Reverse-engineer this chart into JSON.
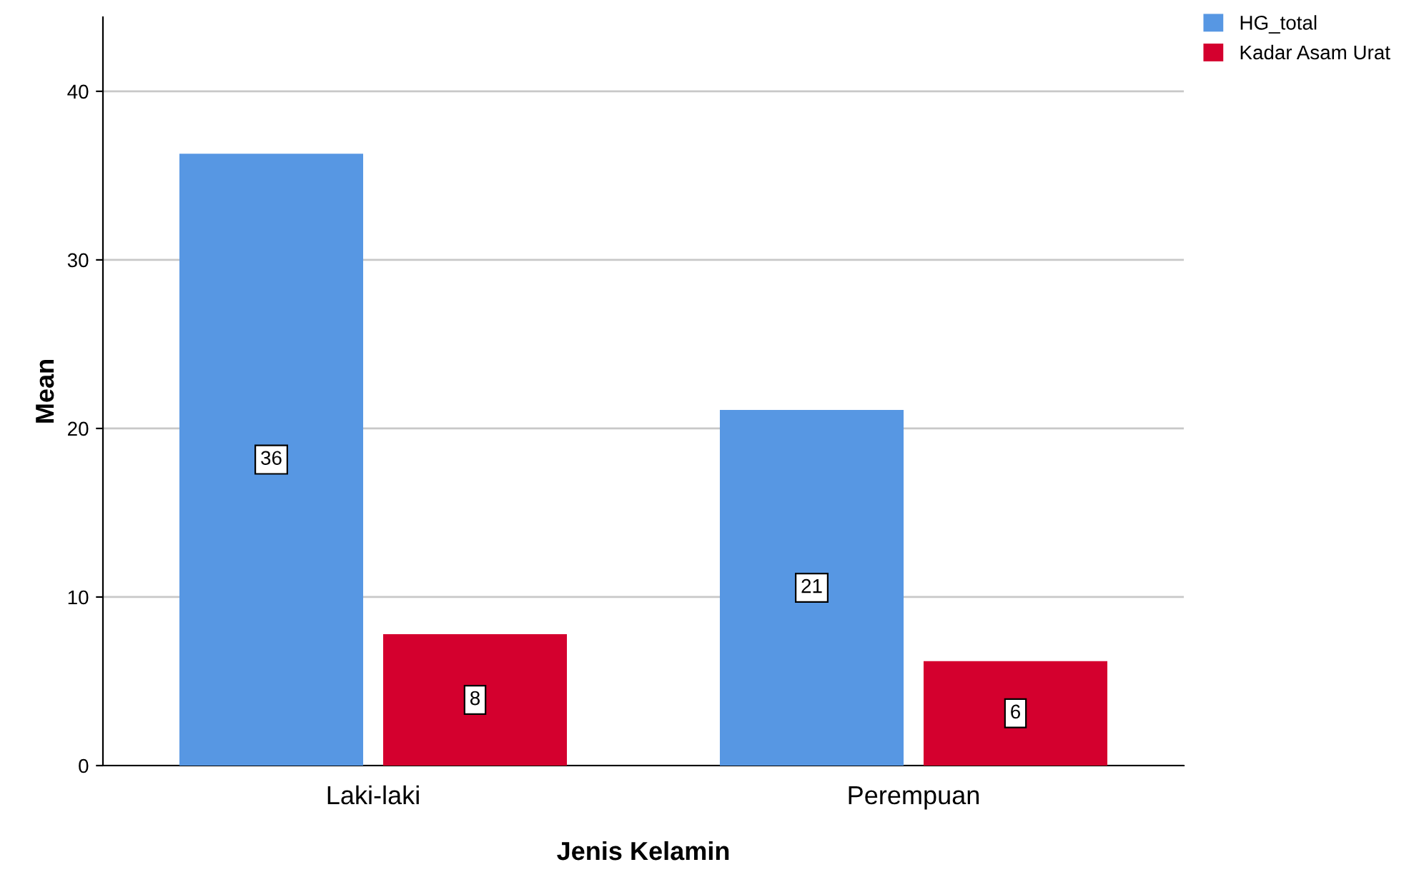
{
  "chart_data": {
    "type": "bar",
    "xlabel": "Jenis Kelamin",
    "ylabel": "Mean",
    "categories": [
      "Laki-laki",
      "Perempuan"
    ],
    "series": [
      {
        "name": "HG_total",
        "color": "#5797e3",
        "values": [
          36.3,
          21.1
        ],
        "value_labels": [
          "36",
          "21"
        ]
      },
      {
        "name": "Kadar Asam Urat",
        "color": "#d4002e",
        "values": [
          7.8,
          6.2
        ],
        "value_labels": [
          "8",
          "6"
        ]
      }
    ],
    "ylim": [
      0,
      44.4
    ],
    "yticks": [
      0,
      10,
      20,
      30,
      40
    ],
    "grid": "y",
    "legend": "top right"
  }
}
